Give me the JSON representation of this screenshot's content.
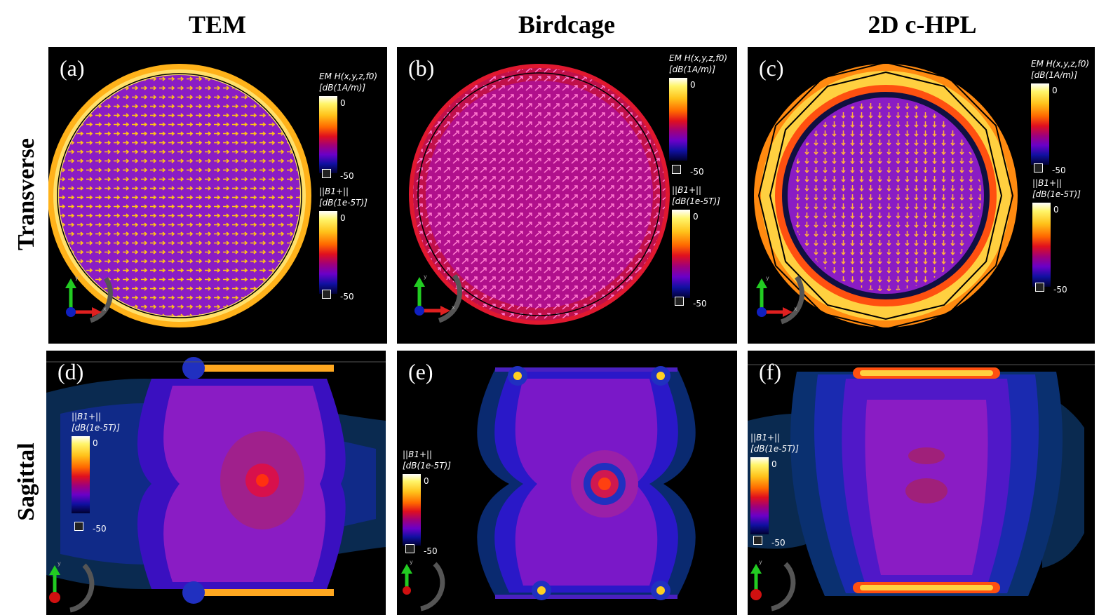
{
  "columns": {
    "tem": "TEM",
    "birdcage": "Birdcage",
    "hpl": "2D c-HPL"
  },
  "rows": {
    "transverse": "Transverse",
    "sagittal": "Sagittal"
  },
  "panels": {
    "a": {
      "label": "(a)"
    },
    "b": {
      "label": "(b)"
    },
    "c": {
      "label": "(c)"
    },
    "d": {
      "label": "(d)"
    },
    "e": {
      "label": "(e)"
    },
    "f": {
      "label": "(f)"
    }
  },
  "colorbars": {
    "h_title": "EM H(x,y,z,f0)",
    "h_unit": "[dB(1A/m)]",
    "b_title": "||B1+||",
    "b_unit": "[dB(1e-5T)]",
    "max": "0",
    "min": "-50"
  },
  "axes": {
    "x": "x",
    "y": "y"
  },
  "colors": {
    "hot": "#ffc21a",
    "white": "#ffffff",
    "purple": "#8a1cc4",
    "red": "#e0101e",
    "blue": "#1010a0"
  }
}
